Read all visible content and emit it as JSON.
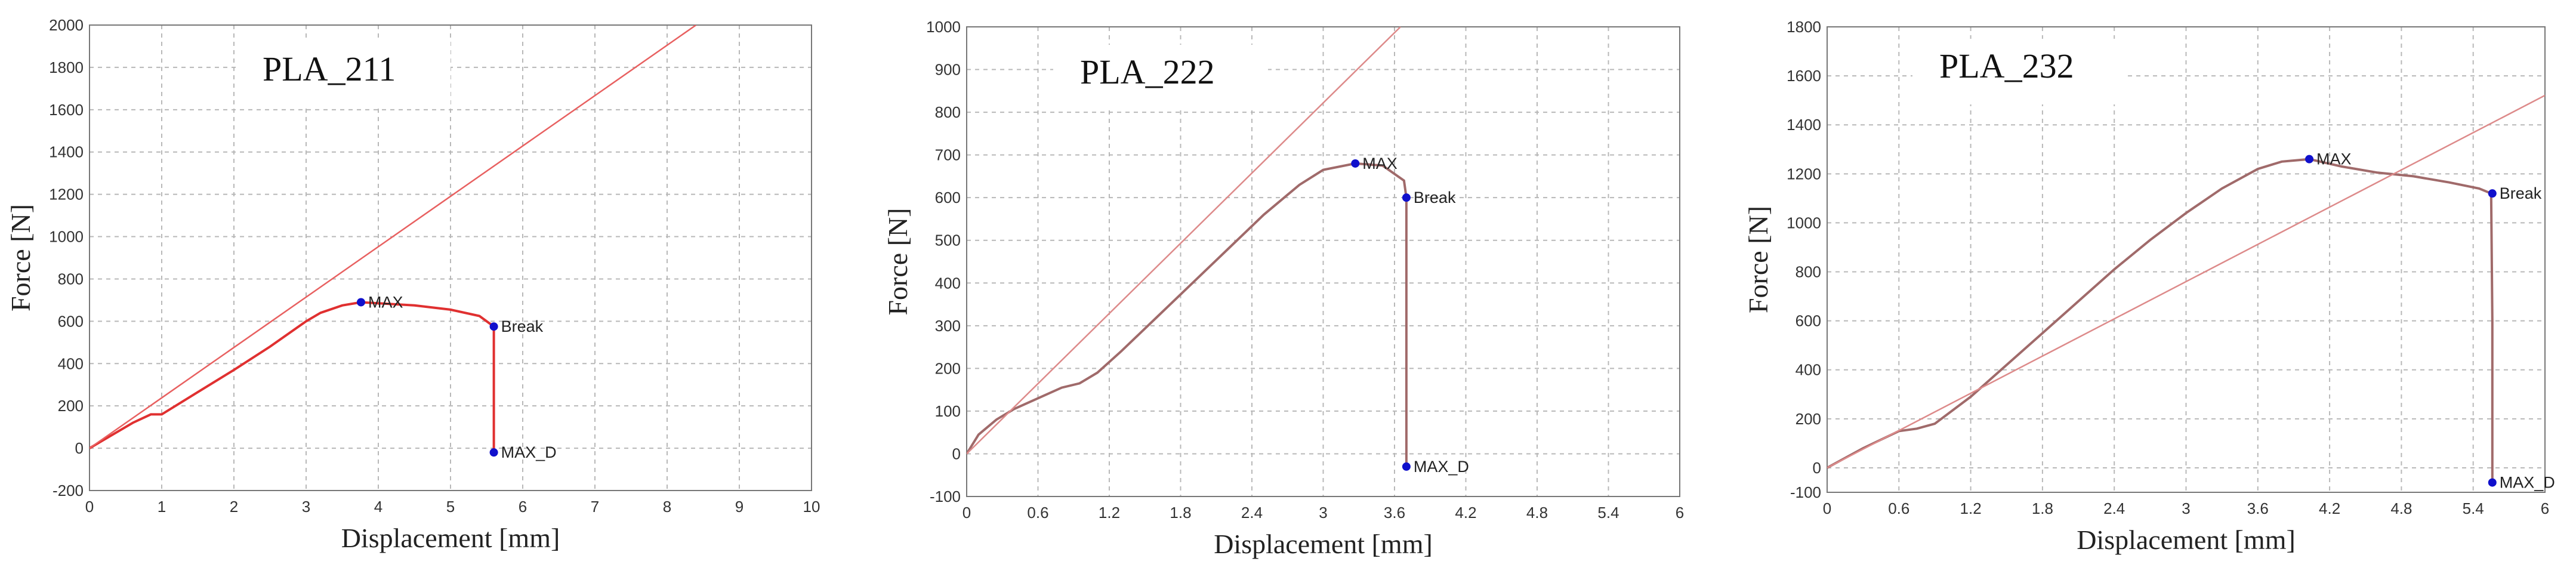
{
  "chart_data": [
    {
      "type": "line",
      "title": "PLA_211",
      "xlabel": "Displacement [mm]",
      "ylabel": "Force [N]",
      "xlim": [
        0,
        10
      ],
      "ylim": [
        -200,
        2000
      ],
      "xticks": [
        "0",
        "1",
        "2",
        "3",
        "4",
        "5",
        "6",
        "7",
        "8",
        "9",
        "10"
      ],
      "yticks": [
        "-200",
        "0",
        "200",
        "400",
        "600",
        "800",
        "1000",
        "1200",
        "1400",
        "1600",
        "1800",
        "2000"
      ],
      "grid": true,
      "colors": {
        "curve": "#e03030",
        "reference": "#e86060",
        "marker": "#1010cc"
      },
      "series": [
        {
          "x": [
            0,
            0.3,
            0.6,
            0.85,
            1.0,
            1.5,
            2.0,
            2.5,
            3.0,
            3.2,
            3.5,
            3.76,
            4.0,
            4.5,
            5.0,
            5.4,
            5.6,
            5.6,
            5.6
          ],
          "values": [
            0,
            60,
            120,
            160,
            160,
            265,
            370,
            480,
            600,
            640,
            675,
            690,
            685,
            675,
            655,
            625,
            575,
            300,
            -20
          ]
        },
        {
          "x": [
            0,
            8.4
          ],
          "values": [
            0,
            2000
          ]
        }
      ],
      "points": [
        {
          "label": "MAX",
          "x": 3.76,
          "y": 690
        },
        {
          "label": "Break",
          "x": 5.6,
          "y": 575
        },
        {
          "label": "MAX_D",
          "x": 5.6,
          "y": -20
        }
      ]
    },
    {
      "type": "line",
      "title": "PLA_222",
      "xlabel": "Displacement [mm]",
      "ylabel": "Force [N]",
      "xlim": [
        0,
        6
      ],
      "ylim": [
        -100,
        1000
      ],
      "xticks": [
        "0",
        "0.6",
        "1.2",
        "1.8",
        "2.4",
        "3",
        "3.6",
        "4.2",
        "4.8",
        "5.4",
        "6"
      ],
      "yticks": [
        "-100",
        "0",
        "100",
        "200",
        "300",
        "400",
        "500",
        "600",
        "700",
        "800",
        "900",
        "1000"
      ],
      "grid": true,
      "colors": {
        "curve": "#a06a6a",
        "reference": "#dd8a8a",
        "marker": "#1010cc"
      },
      "series": [
        {
          "x": [
            0,
            0.1,
            0.25,
            0.4,
            0.6,
            0.8,
            0.95,
            1.1,
            1.3,
            1.6,
            1.9,
            2.2,
            2.5,
            2.8,
            3.0,
            3.27,
            3.5,
            3.68,
            3.7,
            3.7,
            3.7
          ],
          "values": [
            0,
            45,
            80,
            105,
            130,
            155,
            165,
            190,
            240,
            320,
            400,
            480,
            560,
            630,
            665,
            680,
            675,
            640,
            600,
            300,
            -30
          ]
        },
        {
          "x": [
            0,
            3.65
          ],
          "values": [
            0,
            1000
          ]
        }
      ],
      "points": [
        {
          "label": "MAX",
          "x": 3.27,
          "y": 680
        },
        {
          "label": "Break",
          "x": 3.7,
          "y": 600
        },
        {
          "label": "MAX_D",
          "x": 3.7,
          "y": -30
        }
      ]
    },
    {
      "type": "line",
      "title": "PLA_232",
      "xlabel": "Displacement [mm]",
      "ylabel": "Force [N]",
      "xlim": [
        0,
        6
      ],
      "ylim": [
        -100,
        1800
      ],
      "xticks": [
        "0",
        "0.6",
        "1.2",
        "1.8",
        "2.4",
        "3",
        "3.6",
        "4.2",
        "4.8",
        "5.4",
        "6"
      ],
      "yticks": [
        "-100",
        "0",
        "200",
        "400",
        "600",
        "800",
        "1000",
        "1200",
        "1400",
        "1600",
        "1800"
      ],
      "grid": true,
      "colors": {
        "curve": "#a06a6a",
        "reference": "#dd8a8a",
        "marker": "#1010cc"
      },
      "series": [
        {
          "x": [
            0,
            0.3,
            0.6,
            0.75,
            0.9,
            1.2,
            1.5,
            1.8,
            2.1,
            2.4,
            2.7,
            3.0,
            3.3,
            3.6,
            3.8,
            4.03,
            4.3,
            4.6,
            4.9,
            5.2,
            5.45,
            5.55,
            5.56,
            5.56
          ],
          "values": [
            0,
            80,
            150,
            160,
            180,
            290,
            420,
            550,
            680,
            810,
            930,
            1040,
            1140,
            1220,
            1250,
            1260,
            1230,
            1205,
            1190,
            1165,
            1140,
            1120,
            600,
            -60
          ]
        },
        {
          "x": [
            0,
            6
          ],
          "values": [
            0,
            1520
          ]
        }
      ],
      "points": [
        {
          "label": "MAX",
          "x": 4.03,
          "y": 1260
        },
        {
          "label": "Break",
          "x": 5.56,
          "y": 1120
        },
        {
          "label": "MAX_D",
          "x": 5.56,
          "y": -60
        }
      ]
    }
  ]
}
